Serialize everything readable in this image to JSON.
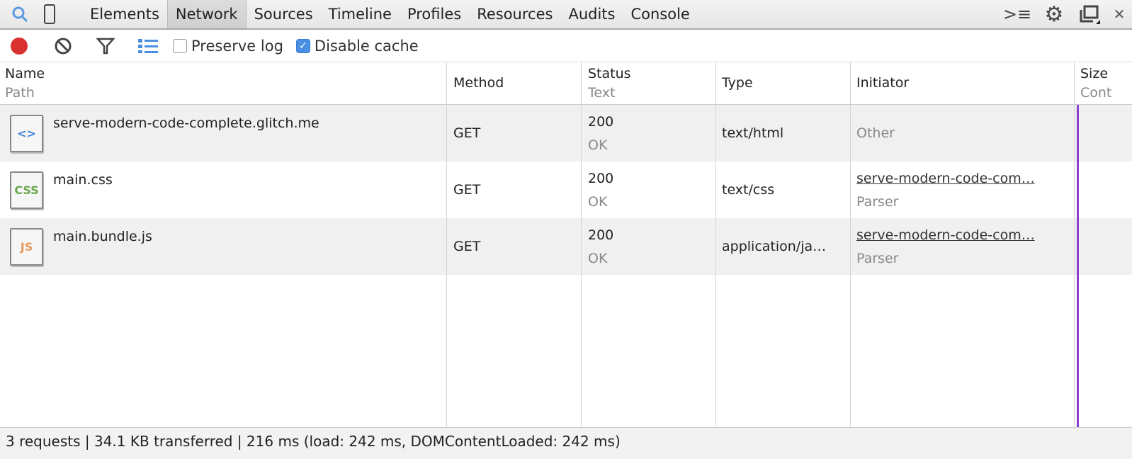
{
  "tabs": [
    "Elements",
    "Network",
    "Sources",
    "Timeline",
    "Profiles",
    "Resources",
    "Audits",
    "Console"
  ],
  "active_tab": "Network",
  "toolbar": {
    "preserve_log": "Preserve log",
    "preserve_log_checked": false,
    "disable_cache": "Disable cache",
    "disable_cache_checked": true
  },
  "columns": {
    "name": "Name",
    "path": "Path",
    "method": "Method",
    "status": "Status",
    "text": "Text",
    "type": "Type",
    "initiator": "Initiator",
    "size": "Size",
    "content": "Cont"
  },
  "rows": [
    {
      "name": "serve-modern-code-complete.glitch.me",
      "icon": "html-file-icon",
      "icon_text": "<>",
      "method": "GET",
      "status": "200",
      "status_text": "OK",
      "type": "text/html",
      "initiator": "Other",
      "initiator_sub": ""
    },
    {
      "name": "main.css",
      "icon": "css-file-icon",
      "icon_text": "CSS",
      "method": "GET",
      "status": "200",
      "status_text": "OK",
      "type": "text/css",
      "initiator": "serve-modern-code-com…",
      "initiator_sub": "Parser"
    },
    {
      "name": "main.bundle.js",
      "icon": "js-file-icon",
      "icon_text": "JS",
      "method": "GET",
      "status": "200",
      "status_text": "OK",
      "type": "application/ja…",
      "initiator": "serve-modern-code-com…",
      "initiator_sub": "Parser"
    }
  ],
  "footer": "3 requests | 34.1 KB transferred | 216 ms (load: 242 ms, DOMContentLoaded: 242 ms)",
  "colors": {
    "record": "#d93030",
    "accent": "#4a90e2",
    "load_line": "#8a3fd1"
  }
}
